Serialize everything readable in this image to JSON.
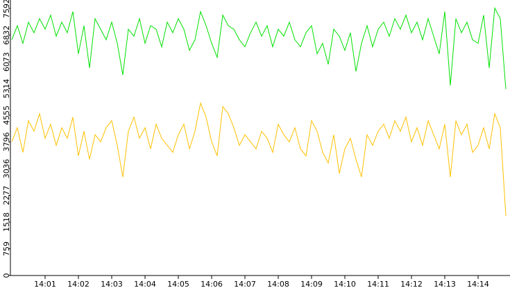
{
  "chart_data": {
    "type": "line",
    "categories": [
      null,
      null,
      null,
      null,
      null,
      null,
      "14:01",
      null,
      null,
      null,
      null,
      null,
      "14:02",
      null,
      null,
      null,
      null,
      null,
      "14:03",
      null,
      null,
      null,
      null,
      null,
      "14:04",
      null,
      null,
      null,
      null,
      null,
      "14:05",
      null,
      null,
      null,
      null,
      null,
      "14:06",
      null,
      null,
      null,
      null,
      null,
      "14:07",
      null,
      null,
      null,
      null,
      null,
      "14:08",
      null,
      null,
      null,
      null,
      null,
      "14:09",
      null,
      null,
      null,
      null,
      null,
      "14:10",
      null,
      null,
      null,
      null,
      null,
      "14:11",
      null,
      null,
      null,
      null,
      null,
      "14:12",
      null,
      null,
      null,
      null,
      null,
      "14:13",
      null,
      null,
      null,
      null,
      null,
      "14:14",
      null,
      null,
      null,
      null,
      null
    ],
    "series": [
      {
        "color": "#00e000",
        "values": [
          6700,
          7100,
          6600,
          7200,
          6900,
          7300,
          7000,
          7400,
          6800,
          7200,
          6900,
          7500,
          6300,
          7100,
          5900,
          7300,
          7000,
          6700,
          7200,
          6600,
          5700,
          7000,
          6800,
          7300,
          6600,
          7100,
          7000,
          6500,
          7200,
          6900,
          7300,
          7000,
          6400,
          6700,
          7500,
          7100,
          6600,
          6200,
          7400,
          7100,
          7000,
          6700,
          6500,
          6900,
          7200,
          6800,
          7100,
          6500,
          7000,
          6800,
          7200,
          6700,
          6500,
          6900,
          7100,
          6300,
          6600,
          6000,
          7000,
          6800,
          6400,
          6900,
          5800,
          6600,
          7100,
          6500,
          7000,
          7200,
          6800,
          7300,
          7000,
          7400,
          6900,
          7200,
          6700,
          7300,
          6800,
          6300,
          7500,
          5400,
          7300,
          6900,
          7200,
          6700,
          6600,
          7400,
          5900,
          7600,
          7300,
          5300
        ]
      },
      {
        "color": "#ffc000",
        "values": [
          3800,
          4200,
          3500,
          4400,
          4100,
          4600,
          3900,
          4300,
          3700,
          4200,
          3900,
          4500,
          3400,
          4100,
          3300,
          4000,
          3800,
          4200,
          4400,
          3700,
          2800,
          4100,
          4500,
          3900,
          4200,
          3600,
          4300,
          3900,
          3700,
          3500,
          4000,
          4300,
          3600,
          4100,
          4900,
          4500,
          3800,
          3400,
          4800,
          4600,
          4200,
          3700,
          4000,
          3800,
          3600,
          4100,
          3900,
          3500,
          4300,
          4000,
          3800,
          4200,
          3600,
          3400,
          4400,
          4100,
          3500,
          3200,
          4000,
          2900,
          3600,
          3900,
          3300,
          2800,
          4000,
          3700,
          4100,
          4300,
          3900,
          4400,
          4100,
          4500,
          3800,
          4200,
          3700,
          4400,
          4000,
          3600,
          4300,
          2800,
          4400,
          4000,
          4300,
          3500,
          3700,
          4200,
          3600,
          4600,
          4200,
          1700
        ]
      }
    ],
    "ylim": [
      0,
      7830
    ],
    "yticks": [
      0,
      759,
      1518,
      2277,
      3036,
      3796,
      4555,
      5314,
      6073,
      6832,
      7592
    ]
  }
}
